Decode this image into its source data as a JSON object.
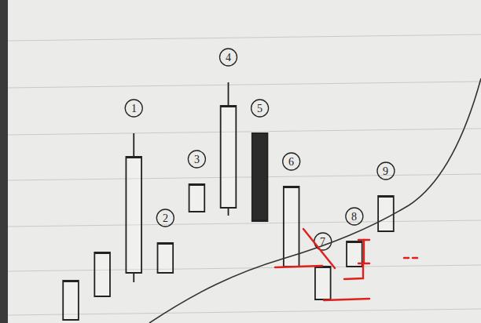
{
  "chart_data": {
    "type": "candlestick",
    "categories": [
      null,
      null,
      "1",
      "2",
      "3",
      "4",
      "5",
      "6",
      "7",
      "8",
      "9"
    ],
    "open": [
      4,
      34,
      64,
      64,
      142,
      147,
      242,
      72,
      30,
      72,
      117
    ],
    "high": [
      54,
      90,
      242,
      102,
      177,
      307,
      242,
      174,
      72,
      104,
      162
    ],
    "low": [
      4,
      34,
      52,
      64,
      142,
      137,
      130,
      72,
      30,
      72,
      117
    ],
    "close": [
      54,
      90,
      212,
      102,
      177,
      277,
      130,
      174,
      72,
      104,
      162
    ],
    "ylim": [
      0,
      412
    ],
    "tick_labels": false,
    "color": "#222222"
  }
}
